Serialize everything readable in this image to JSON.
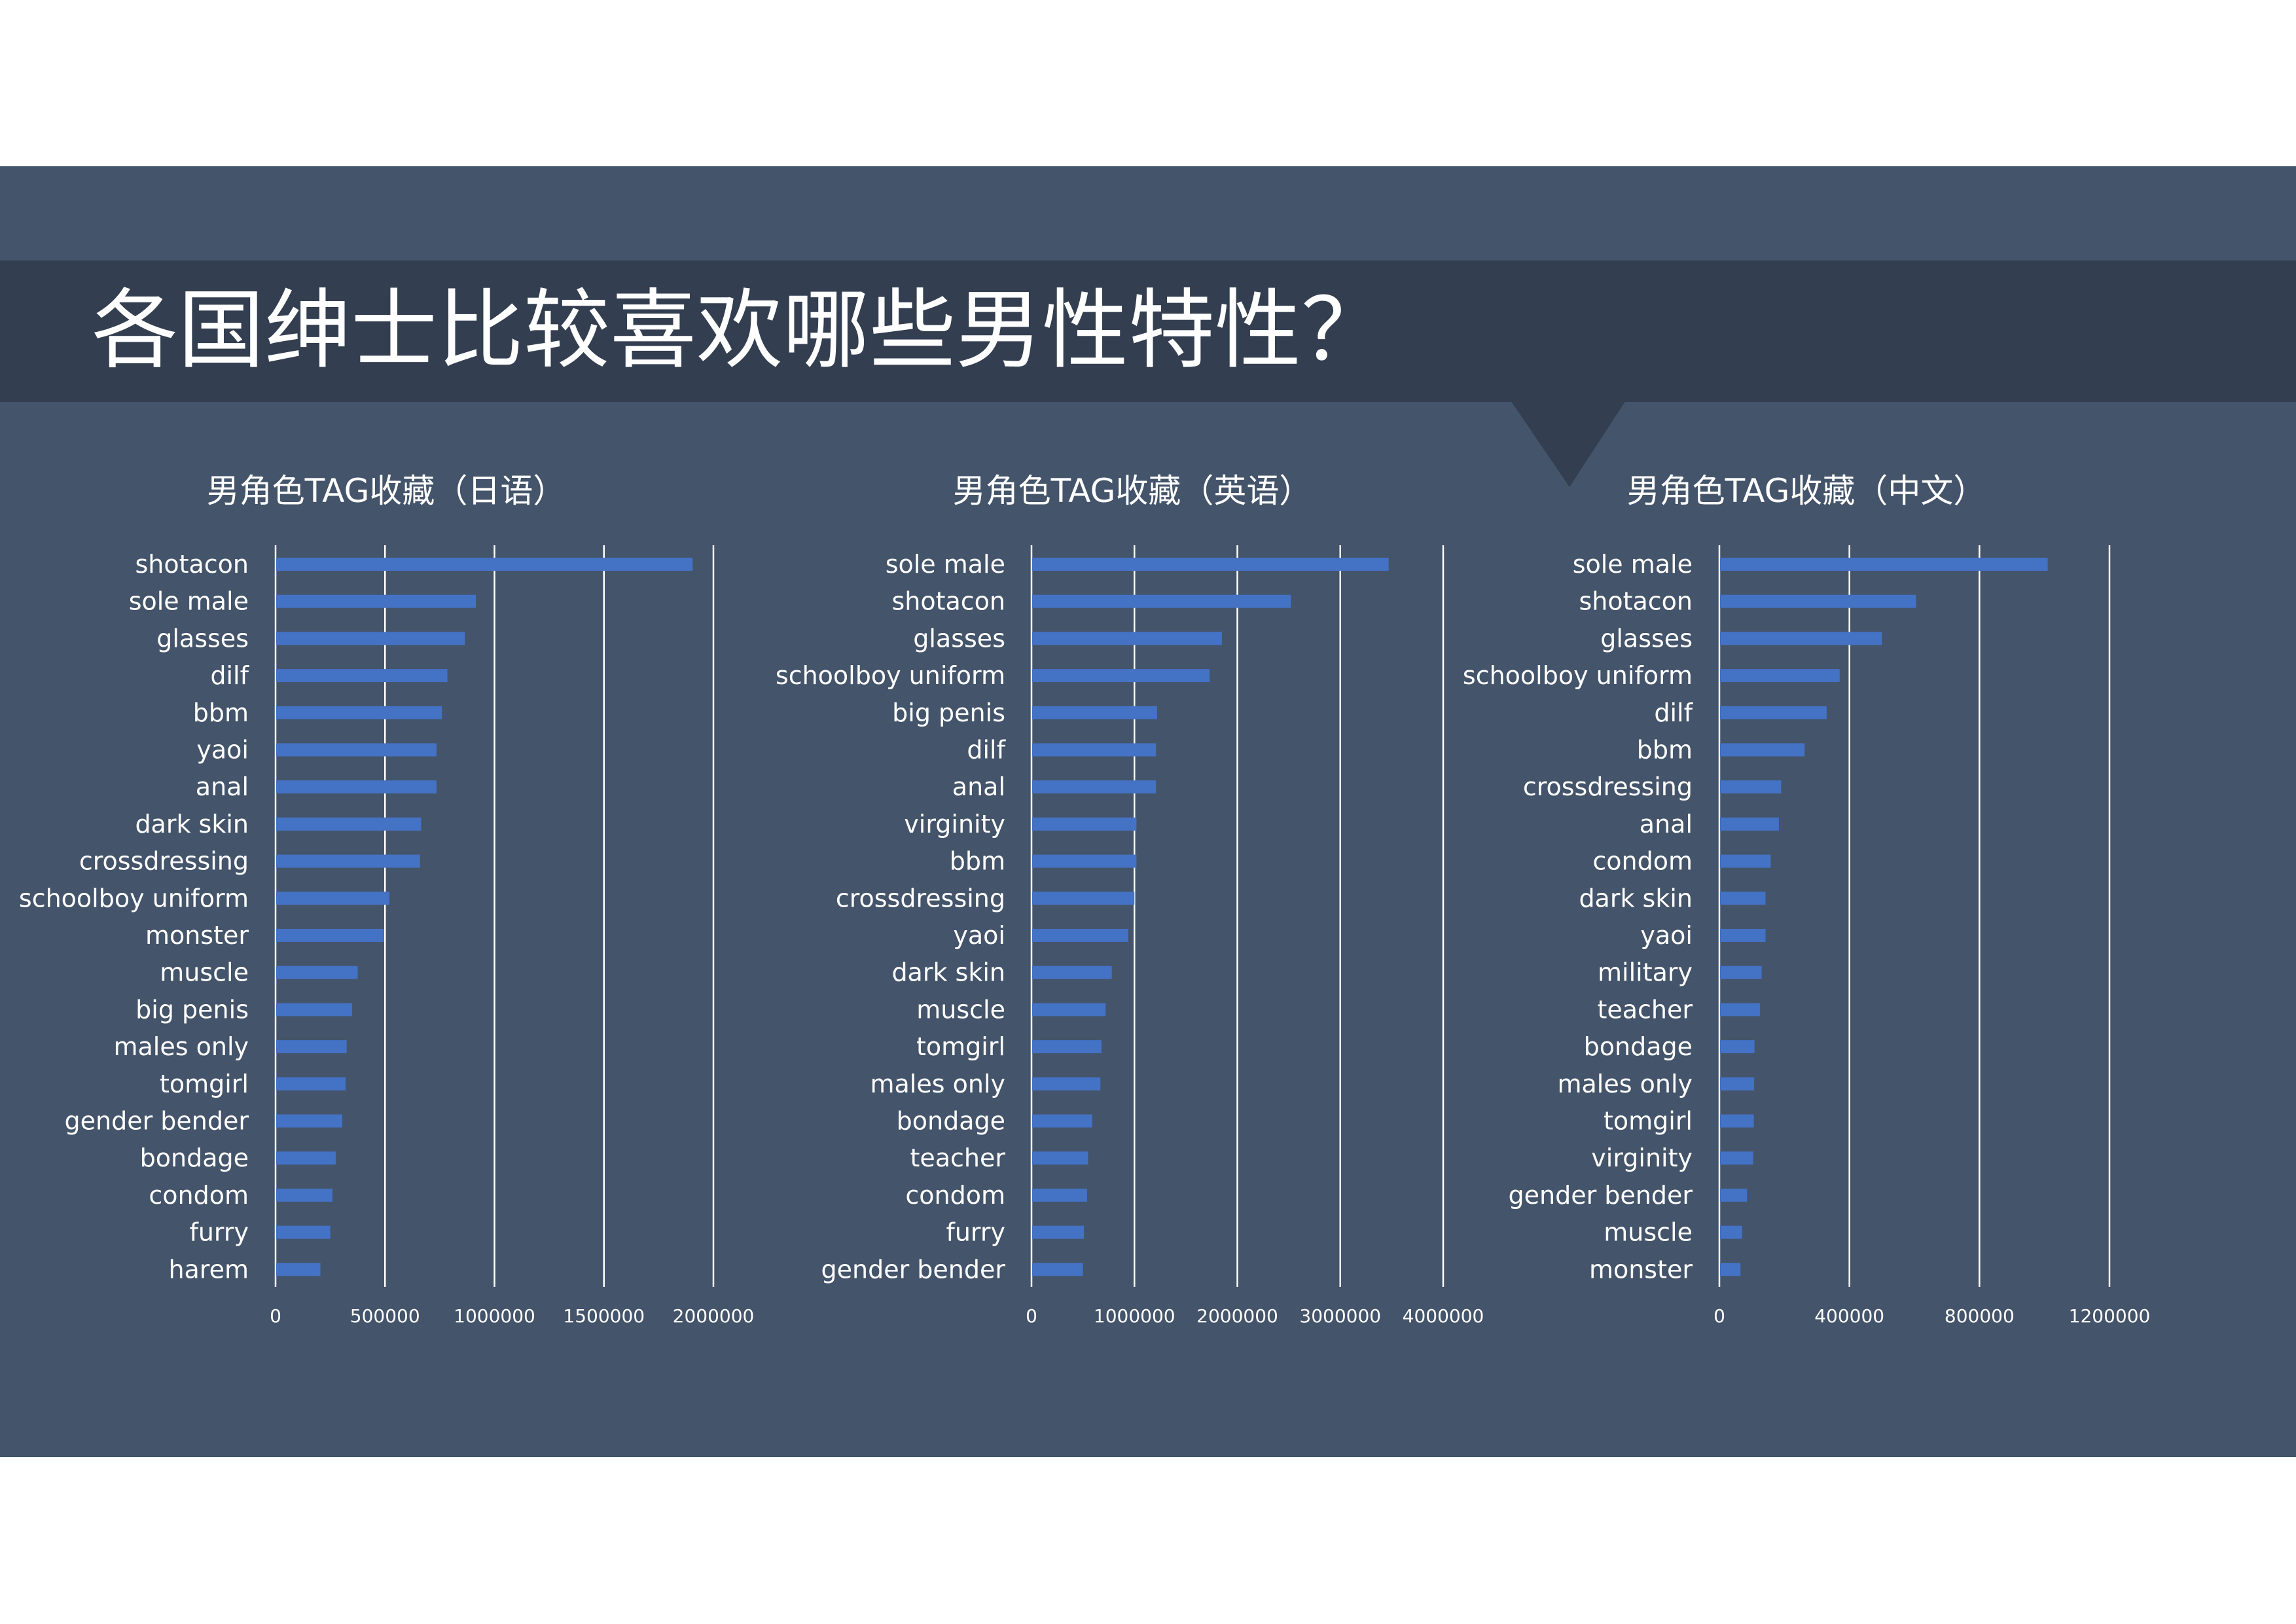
{
  "slide": {
    "title": "各国绅士比较喜欢哪些男性特性？",
    "background": "#44546a",
    "band_color": "#333f50",
    "bar_color": "#4472c4"
  },
  "chart_data": [
    {
      "type": "bar",
      "orientation": "horizontal",
      "title": "男角色TAG收藏（日语）",
      "categories": [
        "shotacon",
        "sole male",
        "glasses",
        "dilf",
        "bbm",
        "yaoi",
        "anal",
        "dark skin",
        "crossdressing",
        "schoolboy uniform",
        "monster",
        "muscle",
        "big penis",
        "males only",
        "tomgirl",
        "gender bender",
        "bondage",
        "condom",
        "furry",
        "harem"
      ],
      "values": [
        1905000,
        915000,
        865000,
        785000,
        760000,
        735000,
        735000,
        665000,
        660000,
        520000,
        495000,
        375000,
        350000,
        325000,
        320000,
        305000,
        275000,
        260000,
        250000,
        205000
      ],
      "xlim": [
        0,
        2000000
      ],
      "xticks": [
        "0",
        "500000",
        "1000000",
        "1500000",
        "2000000"
      ],
      "grid": true,
      "legend": "none"
    },
    {
      "type": "bar",
      "orientation": "horizontal",
      "title": "男角色TAG收藏（英语）",
      "categories": [
        "sole male",
        "shotacon",
        "glasses",
        "schoolboy uniform",
        "big penis",
        "dilf",
        "anal",
        "virginity",
        "bbm",
        "crossdressing",
        "yaoi",
        "dark skin",
        "muscle",
        "tomgirl",
        "males only",
        "bondage",
        "teacher",
        "condom",
        "furry",
        "gender bender"
      ],
      "values": [
        3470000,
        2520000,
        1850000,
        1730000,
        1220000,
        1210000,
        1210000,
        1020000,
        1020000,
        1000000,
        940000,
        780000,
        720000,
        680000,
        670000,
        590000,
        550000,
        540000,
        510000,
        500000
      ],
      "xlim": [
        0,
        4000000
      ],
      "xticks": [
        "0",
        "1000000",
        "2000000",
        "3000000",
        "4000000"
      ],
      "grid": true,
      "legend": "none"
    },
    {
      "type": "bar",
      "orientation": "horizontal",
      "title": "男角色TAG收藏（中文）",
      "categories": [
        "sole male",
        "shotacon",
        "glasses",
        "schoolboy uniform",
        "dilf",
        "bbm",
        "crossdressing",
        "anal",
        "condom",
        "dark skin",
        "yaoi",
        "military",
        "teacher",
        "bondage",
        "males only",
        "tomgirl",
        "virginity",
        "gender bender",
        "muscle",
        "monster"
      ],
      "values": [
        1010000,
        605000,
        500000,
        370000,
        330000,
        262000,
        190000,
        183000,
        158000,
        142000,
        142000,
        130000,
        125000,
        108000,
        107000,
        106000,
        104000,
        85000,
        70000,
        65000
      ],
      "xlim": [
        0,
        1200000
      ],
      "xticks": [
        "0",
        "400000",
        "800000",
        "1200000"
      ],
      "grid": true,
      "legend": "none"
    }
  ]
}
